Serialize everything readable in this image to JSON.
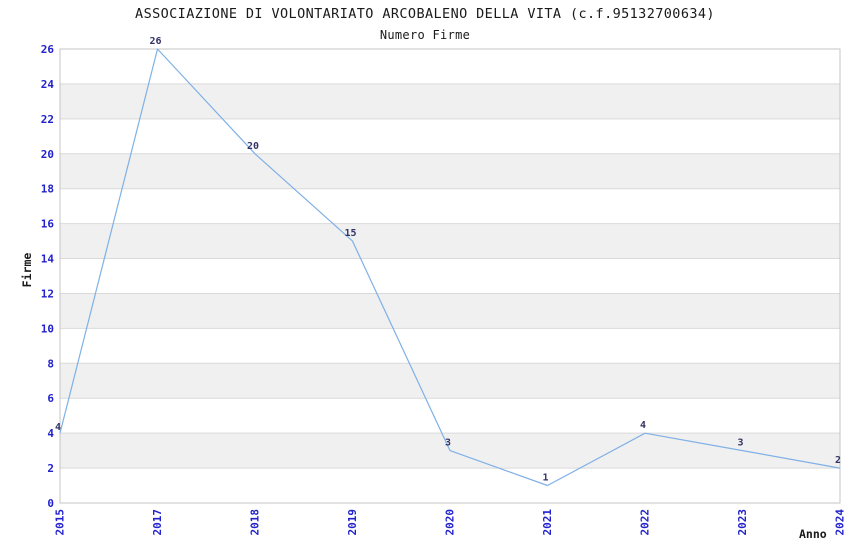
{
  "chart_data": {
    "type": "line",
    "title": "ASSOCIAZIONE DI VOLONTARIATO ARCOBALENO DELLA VITA (c.f.95132700634)",
    "subtitle": "Numero Firme",
    "xlabel": "Anno",
    "ylabel": "Firme",
    "categories": [
      "2015",
      "2017",
      "2018",
      "2019",
      "2020",
      "2021",
      "2022",
      "2023",
      "2024"
    ],
    "values": [
      4,
      26,
      20,
      15,
      3,
      1,
      4,
      3,
      2
    ],
    "series_name": "Numero Firme",
    "ylim": [
      0,
      26
    ],
    "yticks": [
      0,
      2,
      4,
      6,
      8,
      10,
      12,
      14,
      16,
      18,
      20,
      22,
      24,
      26
    ],
    "x_tick_rotation": 90,
    "legend": "none",
    "grid": "alternating horizontal gray bands every 2 units with light gridlines",
    "point_labels_visible": true,
    "colors": {
      "line": "#7FB0E6",
      "tick_label": "#2222CC",
      "data_label": "#333366",
      "band": "#F0F0F0",
      "gridline": "#D9D9D9",
      "border": "#C5C5C5",
      "text": "#1A1A1A",
      "background": "#FFFFFF"
    }
  }
}
